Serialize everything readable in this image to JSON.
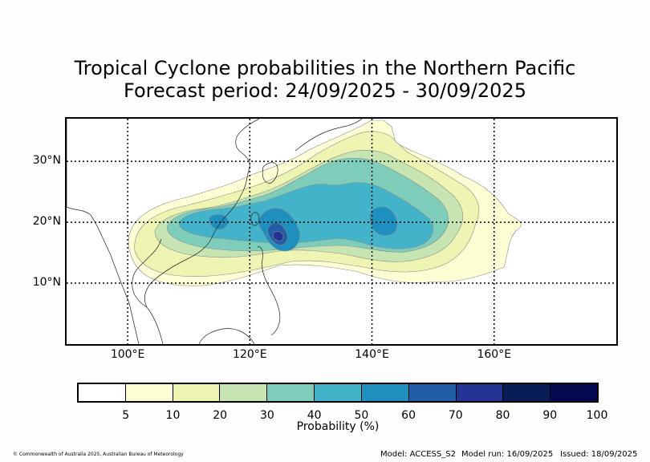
{
  "title_line1": "Tropical Cyclone probabilities in the Northern Pacific",
  "title_line2": "Forecast period: 24/09/2025 - 30/09/2025",
  "map": {
    "lat_labels": [
      "30°N",
      "20°N",
      "10°N"
    ],
    "lon_labels": [
      "100°E",
      "120°E",
      "140°E",
      "160°E"
    ],
    "lat_values": [
      30,
      20,
      10
    ],
    "lon_values": [
      100,
      120,
      140,
      160
    ],
    "extent": {
      "lon_min": 90,
      "lon_max": 180,
      "lat_min": 0,
      "lat_max": 37
    },
    "gridlines": "dotted"
  },
  "colorbar": {
    "label": "Probability (%)",
    "ticks": [
      "5",
      "10",
      "20",
      "30",
      "40",
      "50",
      "60",
      "70",
      "80",
      "90",
      "100"
    ],
    "colors": [
      "#ffffff",
      "#ffffd6",
      "#eef5b3",
      "#c6e5b3",
      "#7ecdbb",
      "#42b3c8",
      "#1e90c0",
      "#225ea8",
      "#253494",
      "#081d58",
      "#050a50"
    ]
  },
  "footer": {
    "copyright": "© Commonwealth of Australia 2025, Australian Bureau of Meteorology",
    "model": "Model: ACCESS_S2",
    "model_run": "Model run: 16/09/2025",
    "issued": "Issued: 18/09/2025"
  }
}
